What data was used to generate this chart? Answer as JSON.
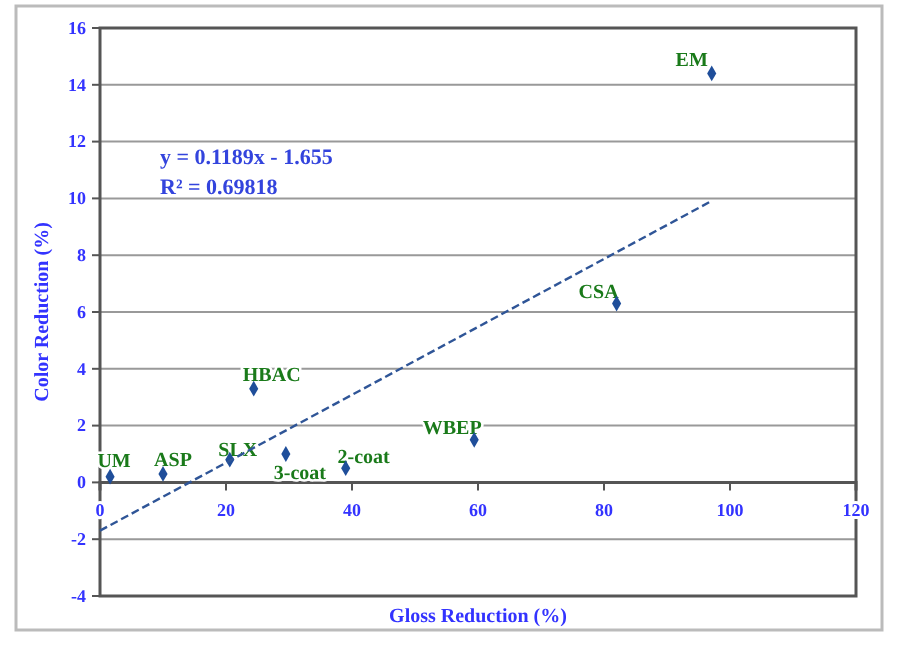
{
  "chart_data": {
    "type": "scatter",
    "xlabel": "Gloss Reduction (%)",
    "ylabel": "Color Reduction (%)",
    "xlim": [
      0,
      120
    ],
    "xticks": [
      0,
      20,
      40,
      60,
      80,
      100,
      120
    ],
    "ylim": [
      -4,
      16
    ],
    "yticks": [
      -4,
      -2,
      0,
      2,
      4,
      6,
      8,
      10,
      12,
      14,
      16
    ],
    "grid": "y",
    "marker": "diamond",
    "series": [
      {
        "color": "#1f4e9a",
        "x": [
          97.1,
          82,
          24.4,
          20.6,
          29.5,
          39,
          59.4,
          1.6,
          10
        ],
        "values": [
          14.4,
          6.3,
          3.3,
          0.8,
          1.0,
          0.5,
          1.5,
          0.2,
          0.3
        ]
      },
      {
        "type": "line",
        "color": "#2f5597",
        "line_style": "dashed",
        "marker": "none",
        "x": [
          0,
          97
        ],
        "values": [
          -1.7,
          9.9
        ]
      }
    ],
    "annotations": [
      "y = 0.1189x - 1.655",
      "R² = 0.69818",
      {
        "text": "EM",
        "x": 97.1,
        "y": 14.4
      },
      {
        "text": "CSA",
        "x": 82,
        "y": 6.3
      },
      {
        "text": "HBAC",
        "x": 24.4,
        "y": 3.3
      },
      {
        "text": "SLX",
        "x": 20.6,
        "y": 0.8
      },
      {
        "text": "3-coat",
        "x": 29.5,
        "y": 1.0
      },
      {
        "text": "2-coat",
        "x": 39,
        "y": 0.5
      },
      {
        "text": "WBEP",
        "x": 59.4,
        "y": 1.5
      },
      {
        "text": "UM",
        "x": 1.6,
        "y": 0.2
      },
      {
        "text": "ASP",
        "x": 10,
        "y": 0.3
      }
    ]
  }
}
